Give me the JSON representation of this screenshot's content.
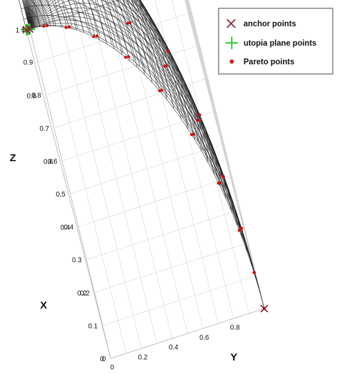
{
  "chart_data": {
    "type": "surface3d",
    "title": "",
    "axes": {
      "x": {
        "label": "X",
        "range": [
          0,
          1
        ],
        "ticks": [
          "0",
          "0.2",
          "0.4",
          "0.6",
          "0.8",
          "1"
        ]
      },
      "y": {
        "label": "Y",
        "range": [
          0,
          1
        ],
        "ticks": [
          "0",
          "0.2",
          "0.4",
          "0.6",
          "0.8"
        ]
      },
      "z": {
        "label": "Z",
        "range": [
          0,
          1
        ],
        "ticks": [
          "0",
          "0.1",
          "0.2",
          "0.3",
          "0.4",
          "0.5",
          "0.6",
          "0.7",
          "0.8",
          "0.9",
          "1"
        ]
      }
    },
    "grid": true,
    "surface": {
      "description": "x^2 + y^2 + z^2 = 1",
      "color": "#222222"
    },
    "legend": {
      "position": "top-right",
      "entries": [
        {
          "label": "anchor points",
          "marker": "x",
          "color": "#8b1a2b"
        },
        {
          "label": "utopia plane points",
          "marker": "+",
          "color": "#33cc33"
        },
        {
          "label": "Pareto points",
          "marker": "dot",
          "color": "#cc1111"
        }
      ]
    },
    "series": [
      {
        "name": "anchor points",
        "points": [
          [
            1,
            0,
            0
          ],
          [
            0,
            1,
            0
          ],
          [
            0,
            0,
            1
          ]
        ]
      },
      {
        "name": "utopia plane points",
        "points": [
          [
            0,
            0,
            1
          ],
          [
            0.1,
            0,
            0.9
          ],
          [
            0.2,
            0,
            0.8
          ],
          [
            0.3,
            0,
            0.7
          ],
          [
            0.4,
            0,
            0.6
          ],
          [
            0.5,
            0,
            0.5
          ],
          [
            0.6,
            0,
            0.4
          ],
          [
            0.7,
            0,
            0.3
          ],
          [
            0.8,
            0,
            0.2
          ],
          [
            0.9,
            0,
            0.1
          ],
          [
            1,
            0,
            0
          ]
        ]
      },
      {
        "name": "Pareto points",
        "sampling": "normalized utopia-plane grid, step 0.1 on x+y+z=1"
      }
    ]
  }
}
